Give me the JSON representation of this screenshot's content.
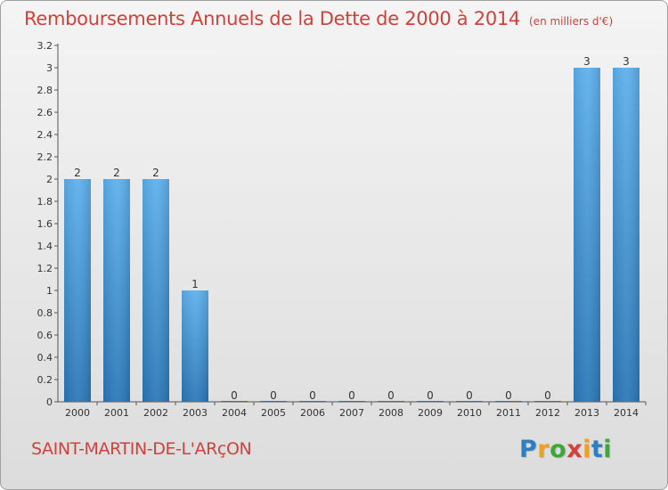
{
  "header": {
    "title": "Remboursements Annuels de la Dette de 2000 à 2014",
    "subtitle": "(en milliers d'€)"
  },
  "footer": {
    "commune": "SAINT-MARTIN-DE-L'ARçON",
    "logo_letters": [
      {
        "ch": "P",
        "color": "#2e7fc1"
      },
      {
        "ch": "r",
        "color": "#f0a020"
      },
      {
        "ch": "o",
        "color": "#3aaa35"
      },
      {
        "ch": "x",
        "color": "#d0413c"
      },
      {
        "ch": "i",
        "color": "#f0a020"
      },
      {
        "ch": "t",
        "color": "#2e7fc1"
      },
      {
        "ch": "i",
        "color": "#3aaa35"
      }
    ]
  },
  "chart_data": {
    "type": "bar",
    "categories": [
      "2000",
      "2001",
      "2002",
      "2003",
      "2004",
      "2005",
      "2006",
      "2007",
      "2008",
      "2009",
      "2010",
      "2011",
      "2012",
      "2013",
      "2014"
    ],
    "values": [
      2,
      2,
      2,
      1,
      0,
      0,
      0,
      0,
      0,
      0,
      0,
      0,
      0,
      3,
      3
    ],
    "data_labels": [
      "2",
      "2",
      "2",
      "1",
      "0",
      "0",
      "0",
      "0",
      "0",
      "0",
      "0",
      "0",
      "0",
      "3",
      "3"
    ],
    "ylim": [
      0,
      3.2
    ],
    "y_ticks": [
      {
        "v": 0,
        "label": "0"
      },
      {
        "v": 0.2,
        "label": "0.2"
      },
      {
        "v": 0.4,
        "label": "0.4"
      },
      {
        "v": 0.6,
        "label": "0.6"
      },
      {
        "v": 0.8,
        "label": "0.8"
      },
      {
        "v": 1,
        "label": "1"
      },
      {
        "v": 1.2,
        "label": "1.2"
      },
      {
        "v": 1.4,
        "label": "1.4"
      },
      {
        "v": 1.6,
        "label": "1.6"
      },
      {
        "v": 1.8,
        "label": "1.8"
      },
      {
        "v": 2,
        "label": "2"
      },
      {
        "v": 2.2,
        "label": "2.2"
      },
      {
        "v": 2.4,
        "label": "2.4"
      },
      {
        "v": 2.6,
        "label": "2.6"
      },
      {
        "v": 2.8,
        "label": "2.8"
      },
      {
        "v": 3,
        "label": "3"
      },
      {
        "v": 3.2,
        "label": "3.2"
      }
    ],
    "grid": false,
    "bar_color": "#3b8fd6"
  }
}
